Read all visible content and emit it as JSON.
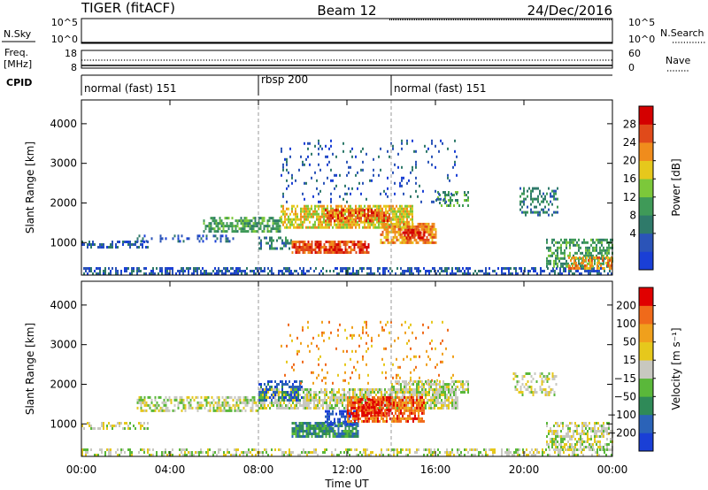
{
  "header": {
    "station": "TIGER (fitACF)",
    "beam": "Beam 12",
    "date": "24/Dec/2016"
  },
  "panels": {
    "nsky": {
      "label": "N.Sky",
      "right_label": "N.Search",
      "ticks": [
        "10^5",
        "10^0"
      ],
      "right_ticks": [
        "10^5",
        "10^0"
      ]
    },
    "freq": {
      "label_line1": "Freq.",
      "label_line2": "[MHz]",
      "ticks": [
        "18",
        "8"
      ],
      "right_label": "Nave",
      "right_ticks": [
        "60",
        "0"
      ]
    },
    "cpid": {
      "label": "CPID",
      "segments": [
        {
          "name": "normal (fast) 151",
          "start": 0,
          "end": 8
        },
        {
          "name": "rbsp 200",
          "start": 8,
          "end": 14
        },
        {
          "name": "normal (fast) 151",
          "start": 14,
          "end": 24
        }
      ]
    }
  },
  "colors": {
    "power": [
      "#1a3fd6",
      "#2b54b8",
      "#2f7a6a",
      "#3f9a58",
      "#7cc83a",
      "#e6c81c",
      "#f08c1c",
      "#e04a1a",
      "#d40000"
    ],
    "velocity": [
      "#1a3fd6",
      "#2b63b8",
      "#2f8a58",
      "#5ab83a",
      "#c8c8c0",
      "#e6c81c",
      "#f0a01c",
      "#f06a1a",
      "#e00000"
    ]
  },
  "chart_data": [
    {
      "type": "heatmap",
      "title": "",
      "xlabel": "",
      "ylabel": "Slant Range [km]",
      "colorbar_label": "Power [dB]",
      "colorbar_ticks": [
        "28",
        "24",
        "20",
        "16",
        "12",
        "8",
        "4"
      ],
      "xlim": [
        0,
        24
      ],
      "ylim": [
        180,
        4600
      ],
      "y_ticks": [
        1000,
        2000,
        3000,
        4000
      ],
      "vertical_markers": [
        8,
        14
      ],
      "regions": [
        {
          "t0": 0,
          "t1": 24,
          "r0": 200,
          "r1": 380,
          "level": 1,
          "density": 0.5
        },
        {
          "t0": 0,
          "t1": 3,
          "r0": 850,
          "r1": 1050,
          "level": 1,
          "density": 0.5
        },
        {
          "t0": 2.5,
          "t1": 7,
          "r0": 1050,
          "r1": 1200,
          "level": 1,
          "density": 0.25
        },
        {
          "t0": 5.5,
          "t1": 9,
          "r0": 1300,
          "r1": 1650,
          "level": 3,
          "density": 0.6
        },
        {
          "t0": 9,
          "t1": 15,
          "r0": 1400,
          "r1": 1950,
          "level": 5,
          "density": 0.75
        },
        {
          "t0": 11,
          "t1": 14,
          "r0": 1550,
          "r1": 1850,
          "level": 7,
          "density": 0.6
        },
        {
          "t0": 8,
          "t1": 9.5,
          "r0": 850,
          "r1": 1150,
          "level": 2,
          "density": 0.45
        },
        {
          "t0": 9.5,
          "t1": 13,
          "r0": 750,
          "r1": 1050,
          "level": 7,
          "density": 0.8
        },
        {
          "t0": 13.5,
          "t1": 16,
          "r0": 1000,
          "r1": 1500,
          "level": 6,
          "density": 0.75
        },
        {
          "t0": 14.5,
          "t1": 15.5,
          "r0": 1100,
          "r1": 1350,
          "level": 8,
          "density": 0.7
        },
        {
          "t0": 16,
          "t1": 17.5,
          "r0": 1900,
          "r1": 2300,
          "level": 3,
          "density": 0.35
        },
        {
          "t0": 9,
          "t1": 17,
          "r0": 2000,
          "r1": 3600,
          "level": 1,
          "density": 0.08
        },
        {
          "t0": 19.8,
          "t1": 21.5,
          "r0": 1700,
          "r1": 2400,
          "level": 2,
          "density": 0.35
        },
        {
          "t0": 21,
          "t1": 24,
          "r0": 400,
          "r1": 1100,
          "level": 3,
          "density": 0.55
        },
        {
          "t0": 22,
          "t1": 24,
          "r0": 350,
          "r1": 650,
          "level": 6,
          "density": 0.5
        }
      ]
    },
    {
      "type": "heatmap",
      "title": "",
      "xlabel": "Time UT",
      "ylabel": "Slant Range [km]",
      "colorbar_label": "Velocity [m s⁻¹]",
      "colorbar_ticks": [
        "200",
        "100",
        "50",
        "15",
        "−15",
        "−50",
        "−100",
        "−200"
      ],
      "x_ticks": [
        "00:00",
        "04:00",
        "08:00",
        "12:00",
        "16:00",
        "20:00",
        "00:00"
      ],
      "xlim": [
        0,
        24
      ],
      "ylim": [
        180,
        4600
      ],
      "y_ticks": [
        1000,
        2000,
        3000,
        4000
      ],
      "vertical_markers": [
        8,
        14
      ],
      "regions": [
        {
          "t0": 0,
          "t1": 24,
          "r0": 200,
          "r1": 380,
          "level": 4,
          "density": 0.45
        },
        {
          "t0": 0,
          "t1": 3,
          "r0": 850,
          "r1": 1050,
          "level": 4,
          "density": 0.4
        },
        {
          "t0": 2.5,
          "t1": 8,
          "r0": 1300,
          "r1": 1700,
          "level": 4,
          "density": 0.55
        },
        {
          "t0": 8,
          "t1": 17,
          "r0": 1400,
          "r1": 1900,
          "level": 4,
          "density": 0.7
        },
        {
          "t0": 8,
          "t1": 10,
          "r0": 1600,
          "r1": 2100,
          "level": 1,
          "density": 0.45
        },
        {
          "t0": 9.5,
          "t1": 12.5,
          "r0": 700,
          "r1": 1050,
          "level": 2,
          "density": 0.8
        },
        {
          "t0": 11,
          "t1": 12.5,
          "r0": 1000,
          "r1": 1350,
          "level": 0,
          "density": 0.6
        },
        {
          "t0": 12,
          "t1": 15.5,
          "r0": 1050,
          "r1": 1700,
          "level": 7,
          "density": 0.7
        },
        {
          "t0": 12.5,
          "t1": 14,
          "r0": 1200,
          "r1": 1650,
          "level": 8,
          "density": 0.5
        },
        {
          "t0": 9,
          "t1": 17,
          "r0": 2000,
          "r1": 3600,
          "level": 6,
          "density": 0.07
        },
        {
          "t0": 14,
          "t1": 17.5,
          "r0": 1800,
          "r1": 2100,
          "level": 4,
          "density": 0.6
        },
        {
          "t0": 19.5,
          "t1": 21.5,
          "r0": 1700,
          "r1": 2300,
          "level": 4,
          "density": 0.4
        },
        {
          "t0": 21,
          "t1": 24,
          "r0": 350,
          "r1": 1050,
          "level": 4,
          "density": 0.55
        }
      ]
    }
  ]
}
